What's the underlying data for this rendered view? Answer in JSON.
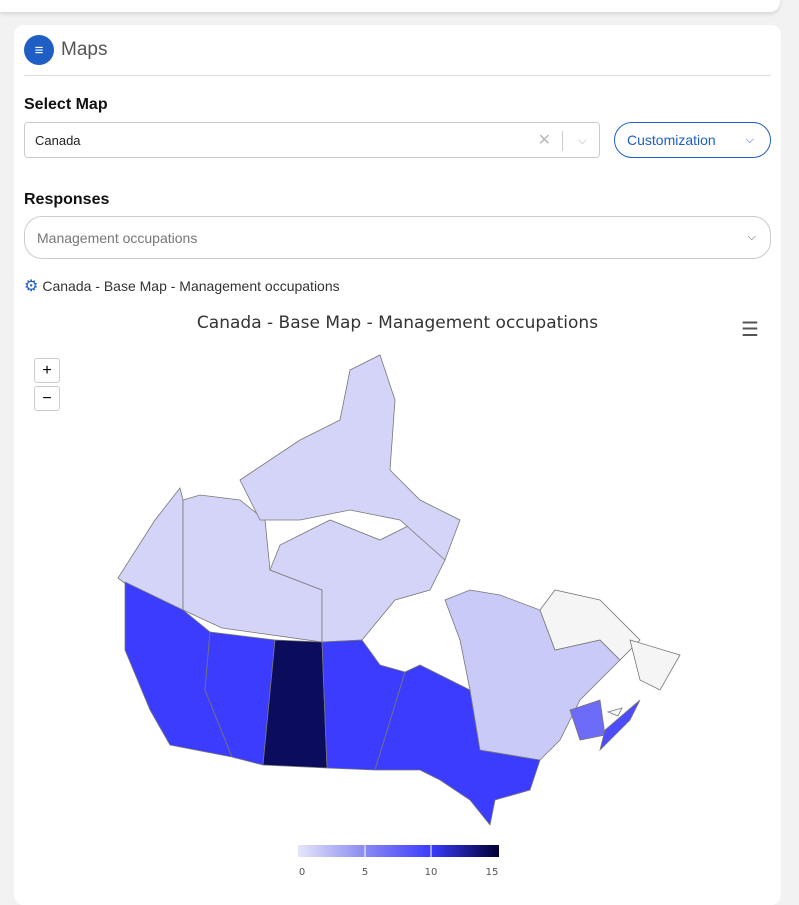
{
  "panel": {
    "title": "Maps",
    "icon": "list-icon"
  },
  "select_map": {
    "label": "Select Map",
    "value": "Canada",
    "customization_label": "Customization"
  },
  "responses": {
    "label": "Responses",
    "value": "Management occupations"
  },
  "chart_subtitle": "Canada - Base Map - Management occupations",
  "chart_data": {
    "type": "choropleth",
    "title": "Canada - Base Map - Management occupations",
    "regions": [
      {
        "name": "Yukon",
        "value": 1
      },
      {
        "name": "Northwest Territories",
        "value": 1
      },
      {
        "name": "Nunavut",
        "value": 1
      },
      {
        "name": "British Columbia",
        "value": 10
      },
      {
        "name": "Alberta",
        "value": 10
      },
      {
        "name": "Saskatchewan",
        "value": 14
      },
      {
        "name": "Manitoba",
        "value": 10
      },
      {
        "name": "Ontario",
        "value": 10
      },
      {
        "name": "Quebec",
        "value": 1.5
      },
      {
        "name": "Newfoundland and Labrador",
        "value": null
      },
      {
        "name": "New Brunswick",
        "value": 7
      },
      {
        "name": "Nova Scotia",
        "value": 9
      },
      {
        "name": "Prince Edward Island",
        "value": null
      }
    ],
    "color_axis": {
      "min": 0,
      "max": 15,
      "ticks": [
        "0",
        "5",
        "10",
        "15"
      ],
      "stops": [
        "#e6e6fa",
        "#8a8af2",
        "#3c3cff",
        "#000033"
      ],
      "null_color": "#f5f5f5"
    }
  },
  "zoom": {
    "in": "+",
    "out": "−"
  }
}
